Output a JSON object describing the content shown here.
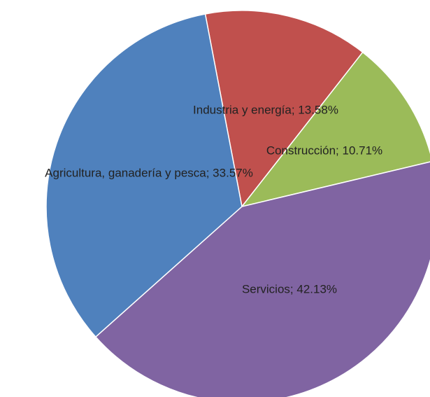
{
  "chart_data": {
    "type": "pie",
    "data_labels": [
      "Industria y energía; 13.58%",
      "Construcción; 10.71%",
      "Servicios; 42.13%",
      "Agricultura, ganadería y pesca; 33.57%"
    ],
    "values": [
      13.58,
      10.71,
      42.13,
      33.57
    ],
    "colors": [
      "#c0504d",
      "#9bbb59",
      "#8064a2",
      "#4f81bd"
    ]
  }
}
